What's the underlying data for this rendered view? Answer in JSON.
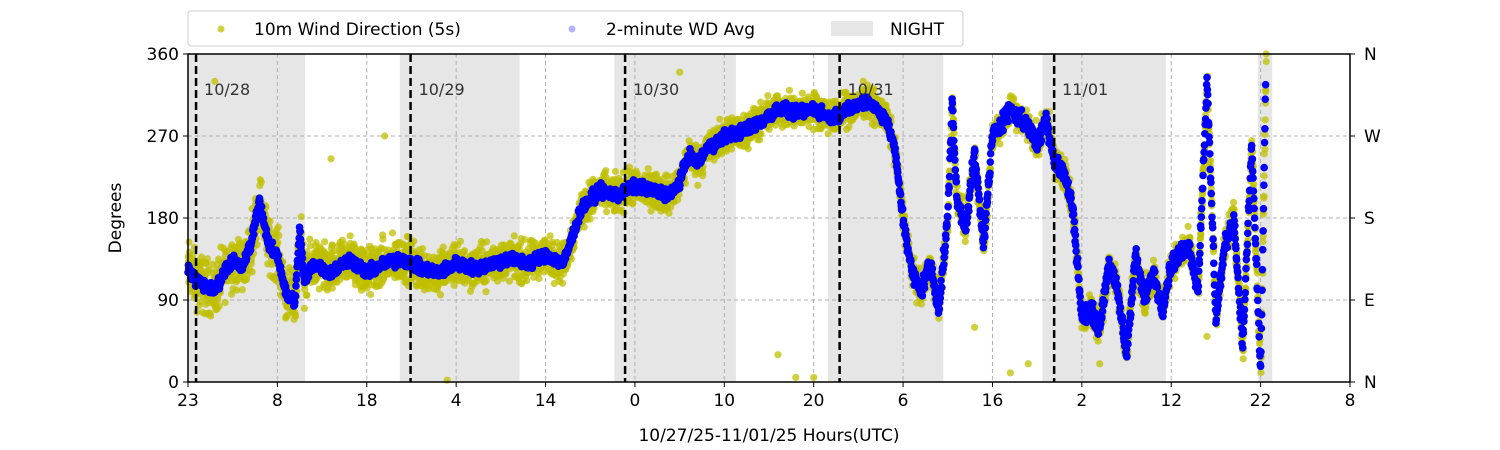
{
  "chart_data": {
    "type": "scatter",
    "xlabel": "10/27/25-11/01/25  Hours(UTC)",
    "ylabel": "Degrees",
    "xlim": [
      0,
      130
    ],
    "ylim": [
      0,
      360
    ],
    "x_units": "hours since start of record",
    "x_tick_values": [
      0,
      10,
      20,
      30,
      40,
      50,
      60,
      70,
      80,
      90,
      100,
      110,
      120,
      130
    ],
    "x_tick_labels": [
      "23",
      "8",
      "18",
      "4",
      "14",
      "0",
      "10",
      "20",
      "6",
      "16",
      "2",
      "12",
      "22",
      "8"
    ],
    "y_tick_values": [
      0,
      90,
      180,
      270,
      360
    ],
    "y_tick_labels": [
      "0",
      "90",
      "180",
      "270",
      "360"
    ],
    "y2_tick_labels": [
      "N",
      "E",
      "S",
      "W",
      "N"
    ],
    "grid": true,
    "legend": {
      "placement": "top-left, above plot",
      "entries": [
        "10m Wind Direction (5s)",
        "2-minute WD Avg",
        "NIGHT"
      ]
    },
    "colors": {
      "wd_5s": "#bfbf00",
      "wd_avg": "#0000ff",
      "night": "#e6e6e6"
    },
    "night_periods": [
      [
        0,
        13.1
      ],
      [
        23.7,
        37.1
      ],
      [
        47.7,
        61.3
      ],
      [
        71.6,
        84.5
      ],
      [
        95.6,
        109.4
      ],
      [
        119.7,
        121.3
      ]
    ],
    "day_markers": [
      {
        "hour": 0.9,
        "label": "10/28"
      },
      {
        "hour": 24.9,
        "label": "10/29"
      },
      {
        "hour": 48.9,
        "label": "10/30"
      },
      {
        "hour": 72.9,
        "label": "10/31"
      },
      {
        "hour": 96.9,
        "label": "11/01"
      }
    ],
    "series": [
      {
        "name": "2-minute WD Avg",
        "approx_points": [
          [
            0,
            125
          ],
          [
            1,
            110
          ],
          [
            2,
            105
          ],
          [
            3,
            100
          ],
          [
            4,
            120
          ],
          [
            5,
            135
          ],
          [
            6,
            125
          ],
          [
            7,
            150
          ],
          [
            8,
            200
          ],
          [
            9,
            150
          ],
          [
            10,
            140
          ],
          [
            11,
            95
          ],
          [
            12,
            90
          ],
          [
            12.5,
            170
          ],
          [
            13,
            110
          ],
          [
            14,
            130
          ],
          [
            16,
            120
          ],
          [
            18,
            135
          ],
          [
            20,
            120
          ],
          [
            22,
            130
          ],
          [
            24,
            135
          ],
          [
            26,
            125
          ],
          [
            28,
            120
          ],
          [
            30,
            130
          ],
          [
            32,
            125
          ],
          [
            34,
            130
          ],
          [
            36,
            135
          ],
          [
            38,
            130
          ],
          [
            40,
            140
          ],
          [
            42,
            130
          ],
          [
            43,
            160
          ],
          [
            44,
            190
          ],
          [
            46,
            210
          ],
          [
            48,
            205
          ],
          [
            50,
            215
          ],
          [
            52,
            210
          ],
          [
            54,
            205
          ],
          [
            55,
            220
          ],
          [
            56,
            250
          ],
          [
            57,
            240
          ],
          [
            58,
            255
          ],
          [
            60,
            270
          ],
          [
            62,
            275
          ],
          [
            64,
            285
          ],
          [
            66,
            300
          ],
          [
            68,
            295
          ],
          [
            70,
            300
          ],
          [
            72,
            290
          ],
          [
            74,
            300
          ],
          [
            76,
            310
          ],
          [
            78,
            290
          ],
          [
            79,
            260
          ],
          [
            80,
            180
          ],
          [
            81,
            120
          ],
          [
            82,
            100
          ],
          [
            83,
            130
          ],
          [
            84,
            80
          ],
          [
            85,
            180
          ],
          [
            85.5,
            310
          ],
          [
            86,
            200
          ],
          [
            87,
            170
          ],
          [
            88,
            250
          ],
          [
            89,
            150
          ],
          [
            90,
            270
          ],
          [
            92,
            300
          ],
          [
            94,
            280
          ],
          [
            95,
            260
          ],
          [
            96,
            290
          ],
          [
            97,
            240
          ],
          [
            98,
            230
          ],
          [
            99,
            190
          ],
          [
            100,
            70
          ],
          [
            101,
            80
          ],
          [
            102,
            60
          ],
          [
            103,
            130
          ],
          [
            104,
            100
          ],
          [
            105,
            30
          ],
          [
            106,
            140
          ],
          [
            107,
            90
          ],
          [
            108,
            120
          ],
          [
            109,
            80
          ],
          [
            110,
            130
          ],
          [
            111,
            140
          ],
          [
            112,
            150
          ],
          [
            113,
            100
          ],
          [
            114,
            330
          ],
          [
            115,
            70
          ],
          [
            116,
            150
          ],
          [
            117,
            180
          ],
          [
            118,
            40
          ],
          [
            119,
            260
          ],
          [
            120,
            10
          ],
          [
            120.6,
            350
          ]
        ]
      },
      {
        "name": "10m Wind Direction (5s)",
        "spread_deg": [
          [
            0,
            45
          ],
          [
            44,
            30
          ],
          [
            80,
            25
          ],
          [
            120.6,
            25
          ]
        ],
        "outliers": [
          [
            3,
            330
          ],
          [
            16,
            245
          ],
          [
            22,
            270
          ],
          [
            29,
            2
          ],
          [
            55,
            340
          ],
          [
            66,
            30
          ],
          [
            68,
            5
          ],
          [
            70,
            5
          ],
          [
            88,
            60
          ],
          [
            92,
            10
          ],
          [
            94,
            20
          ],
          [
            102,
            20
          ],
          [
            114,
            50
          ]
        ]
      }
    ]
  }
}
